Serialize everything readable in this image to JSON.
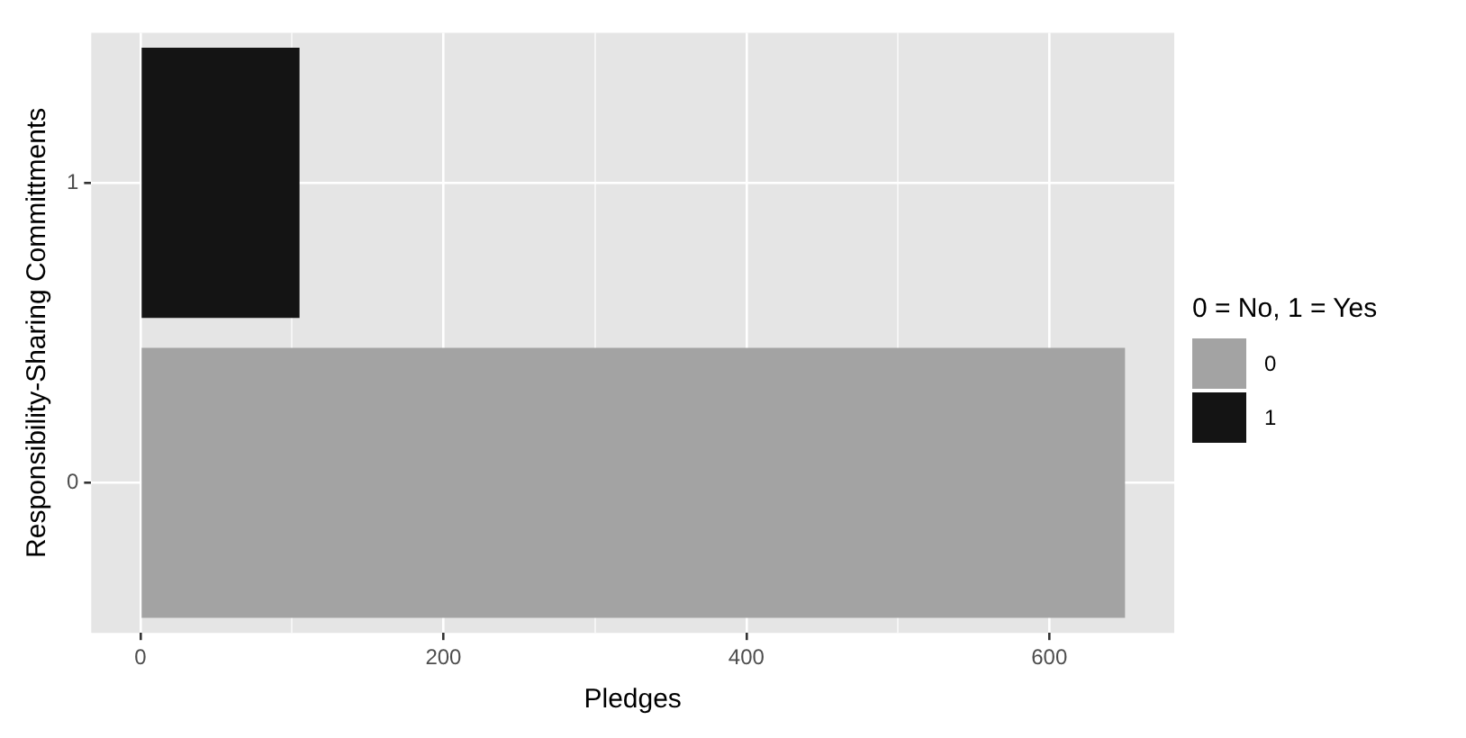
{
  "chart_data": {
    "type": "bar",
    "orientation": "horizontal",
    "stacked": true,
    "xlabel": "Pledges",
    "ylabel": "Responsibility-Sharing Committments",
    "legend_title": "0 = No, 1 = Yes",
    "categories": [
      "1",
      "0"
    ],
    "series": [
      {
        "name": "0",
        "color": "#a3a3a3",
        "values": [
          null,
          650
        ]
      },
      {
        "name": "1",
        "color": "#141414",
        "values": [
          105,
          null
        ]
      }
    ],
    "xlim": [
      -32.5,
      682.5
    ],
    "xticks": [
      0,
      {
        "value": 100,
        "label": null
      },
      200,
      {
        "value": 300,
        "label": null
      },
      400,
      {
        "value": 500,
        "label": null
      },
      600
    ],
    "grid": true,
    "legend": "right"
  }
}
